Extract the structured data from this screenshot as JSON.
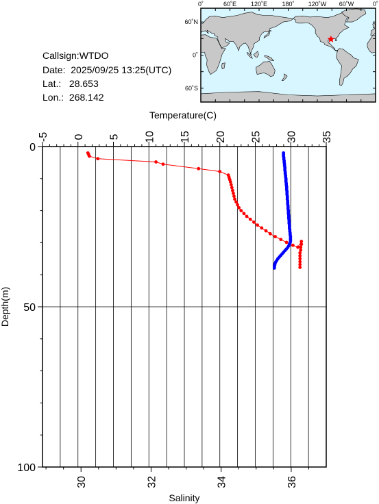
{
  "info": {
    "callsign_line": "Callsign:WTDO",
    "date_line": "Date:  2025/09/25 13:25(UTC)",
    "lat_line": "Lat.:   28.653",
    "lon_line": "Lon.:  268.142"
  },
  "map": {
    "top_labels": [
      "0˚",
      "60˚E",
      "120˚E",
      "180˚",
      "120˚W",
      "60˚W",
      "0˚"
    ],
    "left_labels": [
      "60˚N",
      "0˚",
      "60˚S"
    ],
    "ocean_color": "#d8f6ff",
    "land_color": "#c8c8c8",
    "marker_color": "#ff0000",
    "marker": {
      "lon": 268.142,
      "lat": 28.653
    }
  },
  "chart_data": {
    "type": "line",
    "title": "",
    "top_axis": {
      "label": "Temperature(C)",
      "range": [
        -5,
        35
      ],
      "ticks": [
        -5,
        0,
        5,
        10,
        15,
        20,
        25,
        30,
        35
      ]
    },
    "bottom_axis": {
      "label": "Salinity",
      "range": [
        28.9,
        37.0
      ],
      "ticks": [
        30,
        32,
        34,
        36
      ]
    },
    "left_axis": {
      "label": "Depth(m)",
      "range": [
        0,
        100
      ],
      "ticks": [
        0,
        50,
        100
      ],
      "inverted": true
    },
    "grid": true,
    "series": [
      {
        "color": "#ff0000",
        "axis": "temperature",
        "points": [
          [
            1.4,
            2.0
          ],
          [
            1.5,
            2.5
          ],
          [
            1.6,
            3.0
          ],
          [
            2.8,
            3.8
          ],
          [
            11.0,
            4.8
          ],
          [
            12.0,
            5.5
          ],
          [
            17.0,
            6.9
          ],
          [
            20.0,
            7.8
          ],
          [
            21.2,
            8.9
          ],
          [
            21.3,
            9.6
          ],
          [
            21.4,
            10.3
          ],
          [
            21.5,
            11.0
          ],
          [
            21.6,
            11.9
          ],
          [
            21.7,
            12.8
          ],
          [
            21.8,
            13.7
          ],
          [
            21.9,
            14.6
          ],
          [
            22.0,
            15.5
          ],
          [
            22.1,
            16.4
          ],
          [
            22.3,
            17.3
          ],
          [
            22.5,
            18.2
          ],
          [
            22.7,
            19.1
          ],
          [
            23.0,
            20.0
          ],
          [
            23.4,
            20.9
          ],
          [
            23.8,
            21.8
          ],
          [
            24.3,
            22.7
          ],
          [
            24.8,
            23.6
          ],
          [
            25.3,
            24.5
          ],
          [
            25.9,
            25.4
          ],
          [
            26.5,
            26.3
          ],
          [
            27.1,
            27.2
          ],
          [
            27.8,
            28.1
          ],
          [
            28.6,
            29.0
          ],
          [
            29.4,
            29.9
          ],
          [
            30.3,
            30.8
          ],
          [
            31.0,
            31.4
          ],
          [
            31.5,
            29.6
          ],
          [
            31.5,
            30.5
          ],
          [
            31.4,
            31.4
          ],
          [
            31.4,
            32.3
          ],
          [
            31.3,
            33.2
          ],
          [
            31.3,
            34.1
          ],
          [
            31.3,
            35.0
          ],
          [
            31.3,
            35.9
          ],
          [
            31.3,
            36.8
          ],
          [
            31.3,
            37.7
          ]
        ]
      },
      {
        "color": "#0000ff",
        "axis": "salinity",
        "points": [
          [
            35.78,
            2.0
          ],
          [
            35.78,
            2.5
          ],
          [
            35.78,
            3.0
          ],
          [
            35.79,
            3.5
          ],
          [
            35.79,
            4.0
          ],
          [
            35.8,
            4.5
          ],
          [
            35.8,
            5.0
          ],
          [
            35.81,
            5.5
          ],
          [
            35.81,
            6.0
          ],
          [
            35.82,
            6.5
          ],
          [
            35.82,
            7.0
          ],
          [
            35.82,
            7.5
          ],
          [
            35.83,
            8.0
          ],
          [
            35.83,
            8.5
          ],
          [
            35.84,
            9.0
          ],
          [
            35.84,
            9.5
          ],
          [
            35.85,
            10.0
          ],
          [
            35.85,
            10.5
          ],
          [
            35.85,
            11.0
          ],
          [
            35.86,
            11.5
          ],
          [
            35.86,
            12.0
          ],
          [
            35.87,
            12.5
          ],
          [
            35.87,
            13.0
          ],
          [
            35.87,
            13.5
          ],
          [
            35.88,
            14.0
          ],
          [
            35.88,
            14.5
          ],
          [
            35.88,
            15.0
          ],
          [
            35.89,
            15.5
          ],
          [
            35.89,
            16.0
          ],
          [
            35.89,
            16.5
          ],
          [
            35.9,
            17.0
          ],
          [
            35.9,
            17.5
          ],
          [
            35.9,
            18.0
          ],
          [
            35.91,
            18.5
          ],
          [
            35.91,
            19.0
          ],
          [
            35.91,
            19.5
          ],
          [
            35.92,
            20.0
          ],
          [
            35.92,
            20.5
          ],
          [
            35.92,
            21.0
          ],
          [
            35.93,
            21.5
          ],
          [
            35.93,
            22.0
          ],
          [
            35.93,
            22.5
          ],
          [
            35.94,
            23.0
          ],
          [
            35.94,
            23.5
          ],
          [
            35.94,
            24.0
          ],
          [
            35.95,
            24.5
          ],
          [
            35.95,
            25.0
          ],
          [
            35.95,
            25.5
          ],
          [
            35.96,
            26.0
          ],
          [
            35.96,
            26.5
          ],
          [
            35.97,
            27.0
          ],
          [
            35.97,
            27.5
          ],
          [
            35.98,
            28.0
          ],
          [
            35.98,
            28.5
          ],
          [
            35.98,
            29.0
          ],
          [
            35.98,
            29.5
          ],
          [
            35.97,
            30.0
          ],
          [
            35.95,
            30.5
          ],
          [
            35.93,
            31.0
          ],
          [
            35.9,
            31.5
          ],
          [
            35.86,
            32.0
          ],
          [
            35.82,
            32.5
          ],
          [
            35.78,
            33.0
          ],
          [
            35.74,
            33.5
          ],
          [
            35.7,
            34.0
          ],
          [
            35.66,
            34.5
          ],
          [
            35.62,
            35.0
          ],
          [
            35.59,
            35.5
          ],
          [
            35.56,
            36.0
          ],
          [
            35.54,
            36.5
          ],
          [
            35.53,
            37.0
          ],
          [
            35.52,
            37.5
          ],
          [
            35.52,
            37.9
          ]
        ]
      }
    ]
  }
}
